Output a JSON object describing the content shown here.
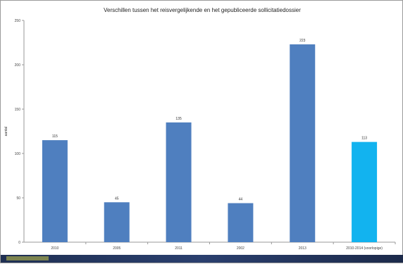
{
  "chart_data": {
    "type": "bar",
    "title": "Verschillen tussen het reisvergelijkende en het gepubliceerde sollicitatiedossier",
    "xlabel": "",
    "ylabel": "aantal",
    "ylim": [
      0,
      250
    ],
    "yticks": [
      0,
      50,
      100,
      150,
      200,
      250
    ],
    "grid": false,
    "categories": [
      "2010",
      "2005",
      "2011",
      "2002",
      "2013",
      "2010-2014 (voorlopige)"
    ],
    "values": [
      115,
      45,
      135,
      44,
      223,
      113
    ],
    "value_labels": [
      "115",
      "45",
      "135",
      "44",
      "223",
      "113"
    ],
    "colors": [
      "#4f7fbf",
      "#4f7fbf",
      "#4f7fbf",
      "#4f7fbf",
      "#4f7fbf",
      "#12b3ef"
    ]
  }
}
